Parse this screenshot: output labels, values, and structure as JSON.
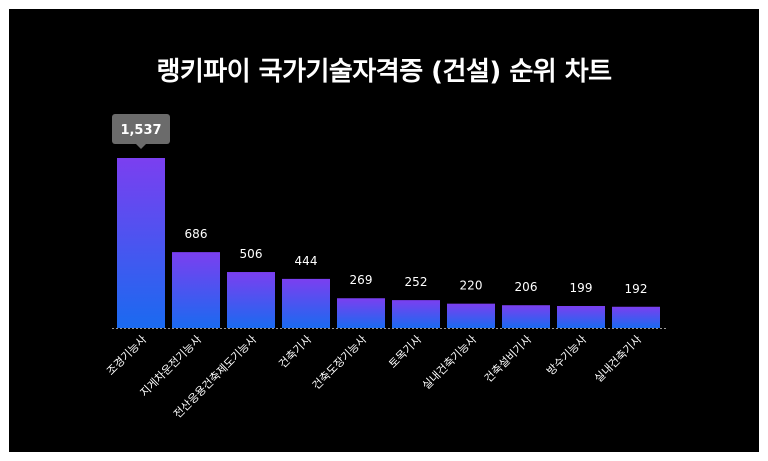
{
  "title": "랭키파이 국가기술자격증 (건설) 순위 차트",
  "colors": {
    "background": "#000000",
    "bar_top": "#7b3ff0",
    "bar_bottom": "#1a6af0",
    "text": "#ffffff",
    "tooltip_bg": "#6b6b6b"
  },
  "chart_data": {
    "type": "bar",
    "categories": [
      "조경기능사",
      "지게차운전기능사",
      "전산응용건축제도기능사",
      "건축기사",
      "건축도장기능사",
      "토목기사",
      "실내건축기능사",
      "건축설비기사",
      "방수기능사",
      "실내건축기사"
    ],
    "values": [
      1537,
      686,
      506,
      444,
      269,
      252,
      220,
      206,
      199,
      192
    ],
    "value_labels": [
      "1,537",
      "686",
      "506",
      "444",
      "269",
      "252",
      "220",
      "206",
      "199",
      "192"
    ],
    "highlight_index": 0,
    "ylim": [
      0,
      1537
    ],
    "grid": false,
    "legend": "none"
  }
}
